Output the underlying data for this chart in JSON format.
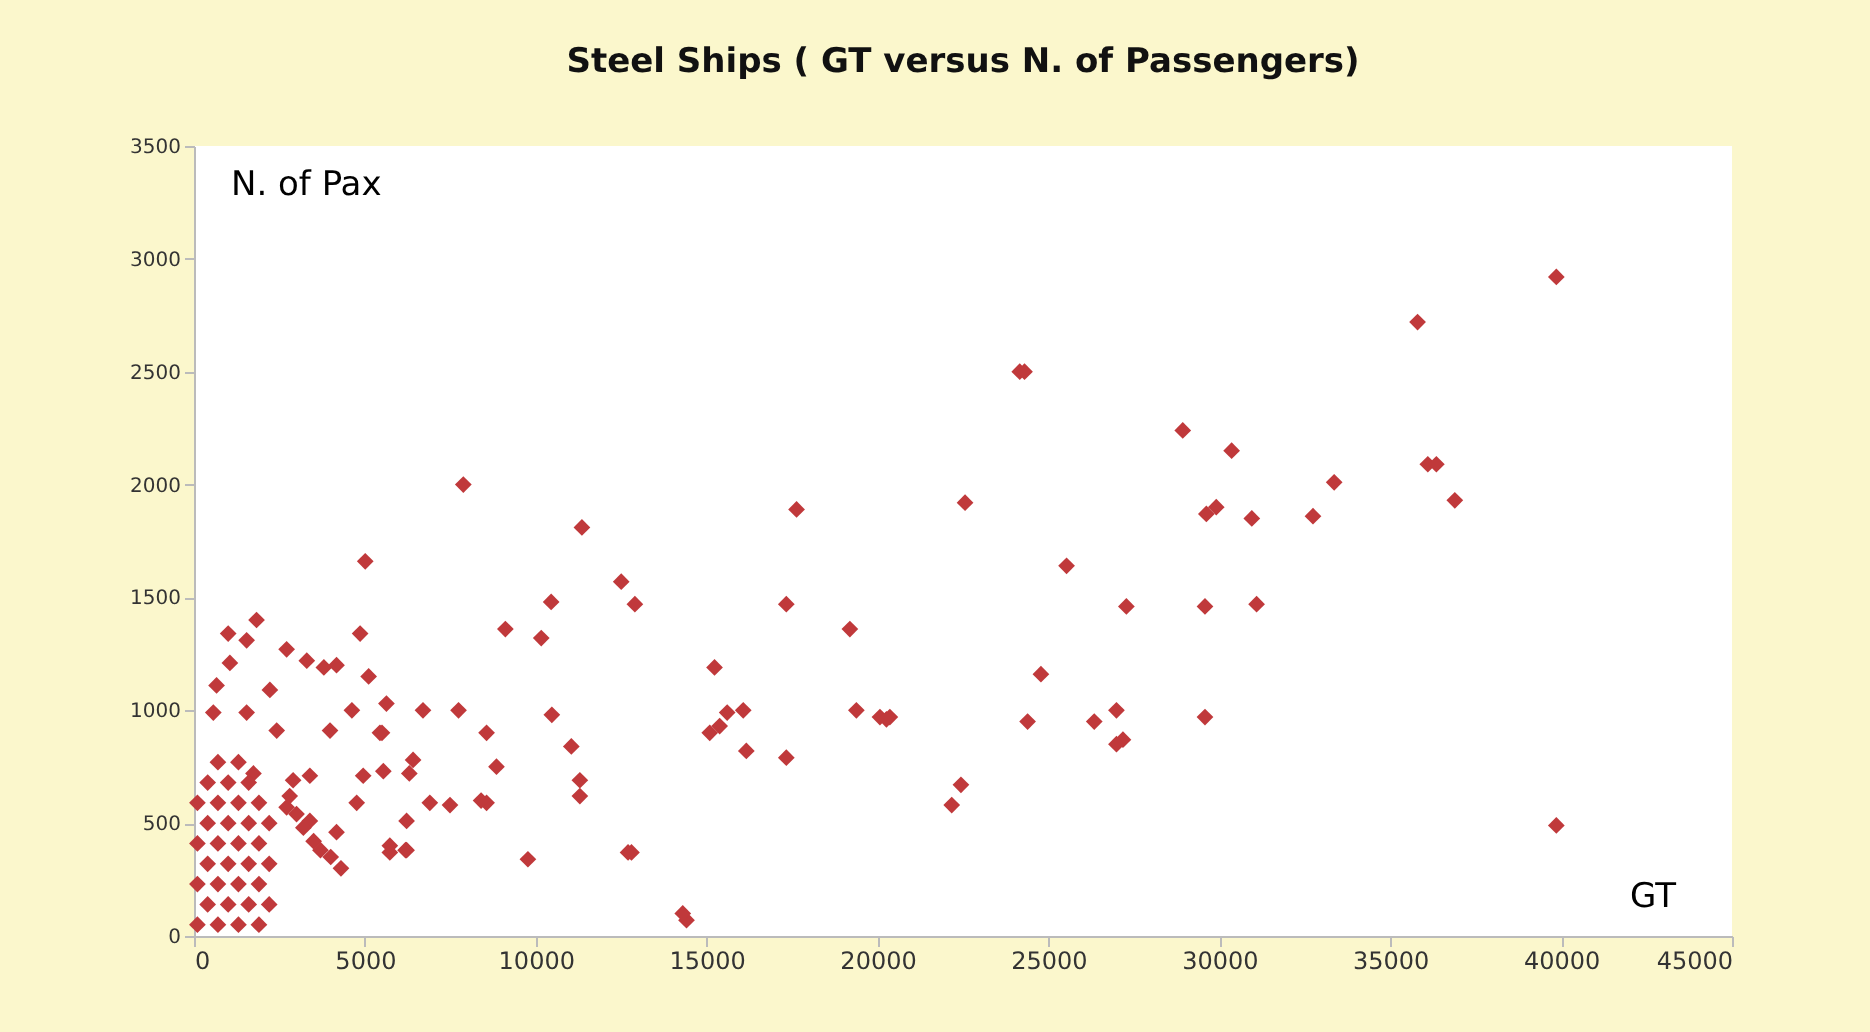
{
  "chart_data": {
    "type": "scatter",
    "title": "Steel Ships ( GT versus N. of Passengers)",
    "xlabel": "GT",
    "ylabel": "N. of Pax",
    "marker": "diamond",
    "grid": false,
    "xlim": [
      0,
      45000
    ],
    "xticks": [
      0,
      5000,
      10000,
      15000,
      20000,
      25000,
      30000,
      35000,
      40000,
      45000
    ],
    "ylim": [
      0,
      3500
    ],
    "yticks": [
      0,
      500,
      1000,
      1500,
      2000,
      2500,
      3000,
      3500
    ],
    "series": [
      {
        "color": "#c0393b",
        "x": [
          39860,
          39860,
          35800,
          36890,
          36100,
          36350,
          33360,
          32740,
          31090,
          30950,
          30360,
          29910,
          29620,
          29580,
          29580,
          28930,
          27280,
          27180,
          26990,
          26990,
          26340,
          25530,
          24780,
          24390,
          24160,
          24300,
          22560,
          22440,
          22170,
          20360,
          20070,
          20260,
          19380,
          19190,
          17630,
          17330,
          17330,
          16160,
          16070,
          15600,
          15380,
          15230,
          15090,
          14410,
          14300,
          12900,
          12800,
          12700,
          12500,
          11350,
          11290,
          11290,
          11040,
          10470,
          10450,
          10160,
          9770,
          9110,
          8850,
          8560,
          8560,
          8400,
          7880,
          7740,
          7490,
          6900,
          6700,
          6410,
          6300,
          6220,
          6220,
          6190,
          5730,
          5730,
          5630,
          5540,
          5500,
          5440,
          5110,
          5010,
          4950,
          4860,
          4760,
          4620,
          4170,
          4170,
          3980,
          3800,
          3390,
          3390,
          3300,
          2900,
          2710,
          2710,
          2420,
          2220,
          1830,
          1740,
          1540,
          1540,
          1050,
          1000,
          660,
          565,
          100,
          700,
          1300,
          1900,
          400,
          1000,
          1600,
          2200,
          100,
          700,
          1300,
          1900,
          400,
          1000,
          1600,
          2200,
          100,
          700,
          1300,
          1900,
          400,
          1000,
          1600,
          2200,
          100,
          700,
          1300,
          1900,
          400,
          1000,
          1600,
          700,
          1300,
          2800,
          3000,
          3200,
          3500,
          3700,
          4000,
          4300
        ],
        "values": [
          490,
          2920,
          2720,
          1930,
          2090,
          2090,
          2010,
          1860,
          1470,
          1850,
          2150,
          1900,
          1870,
          1460,
          970,
          2240,
          1460,
          870,
          1000,
          850,
          950,
          1640,
          1160,
          950,
          2500,
          2500,
          1920,
          670,
          580,
          970,
          970,
          960,
          1000,
          1360,
          1890,
          1470,
          790,
          820,
          1000,
          990,
          930,
          1190,
          900,
          70,
          100,
          1470,
          370,
          370,
          1570,
          1810,
          690,
          620,
          840,
          980,
          1480,
          1320,
          340,
          1360,
          750,
          900,
          590,
          600,
          2000,
          1000,
          580,
          590,
          1000,
          780,
          720,
          510,
          380,
          380,
          400,
          370,
          1030,
          730,
          900,
          900,
          1150,
          1660,
          710,
          1340,
          590,
          1000,
          1200,
          460,
          910,
          1190,
          510,
          710,
          1220,
          690,
          1270,
          570,
          910,
          1090,
          1400,
          720,
          1310,
          990,
          1210,
          1340,
          1110,
          990,
          50,
          50,
          50,
          50,
          140,
          140,
          140,
          140,
          230,
          230,
          230,
          230,
          320,
          320,
          320,
          320,
          410,
          410,
          410,
          410,
          500,
          500,
          500,
          500,
          590,
          590,
          590,
          590,
          680,
          680,
          680,
          770,
          770,
          620,
          540,
          480,
          420,
          380,
          350,
          300
        ]
      }
    ]
  }
}
